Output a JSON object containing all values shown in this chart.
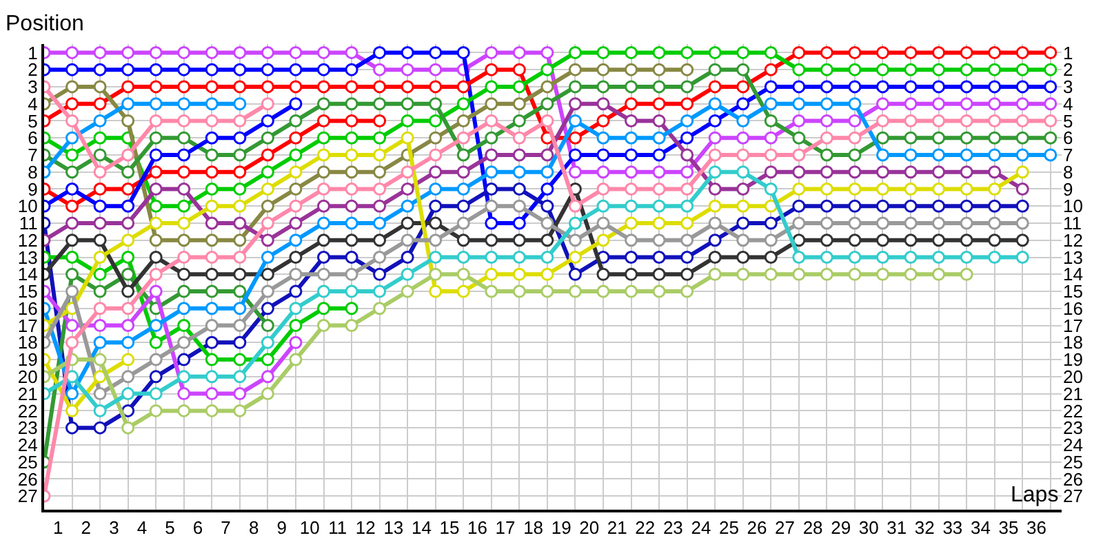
{
  "chart_data": {
    "type": "line",
    "xlabel": "Laps",
    "ylabel": "Position",
    "grid": true,
    "marker": "circle",
    "line_style": "solid",
    "x": [
      0,
      1,
      2,
      3,
      4,
      5,
      6,
      7,
      8,
      9,
      10,
      11,
      12,
      13,
      14,
      15,
      16,
      17,
      18,
      19,
      20,
      21,
      22,
      23,
      24,
      25,
      26,
      27,
      28,
      29,
      30,
      31,
      32,
      33,
      34,
      35,
      36
    ],
    "xlim": [
      0,
      36.4
    ],
    "xticks": [
      {
        "value": 0.5,
        "label": "1"
      },
      {
        "value": 1.5,
        "label": "2"
      },
      {
        "value": 2.5,
        "label": "3"
      },
      {
        "value": 3.5,
        "label": "4"
      },
      {
        "value": 4.5,
        "label": "5"
      },
      {
        "value": 5.5,
        "label": "6"
      },
      {
        "value": 6.5,
        "label": "7"
      },
      {
        "value": 7.5,
        "label": "8"
      },
      {
        "value": 8.5,
        "label": "9"
      },
      {
        "value": 9.5,
        "label": "10"
      },
      {
        "value": 10.5,
        "label": "11"
      },
      {
        "value": 11.5,
        "label": "12"
      },
      {
        "value": 12.5,
        "label": "13"
      },
      {
        "value": 13.5,
        "label": "14"
      },
      {
        "value": 14.5,
        "label": "15"
      },
      {
        "value": 15.5,
        "label": "16"
      },
      {
        "value": 16.5,
        "label": "17"
      },
      {
        "value": 17.5,
        "label": "18"
      },
      {
        "value": 18.5,
        "label": "19"
      },
      {
        "value": 19.5,
        "label": "20"
      },
      {
        "value": 20.5,
        "label": "21"
      },
      {
        "value": 21.5,
        "label": "22"
      },
      {
        "value": 22.5,
        "label": "23"
      },
      {
        "value": 23.5,
        "label": "24"
      },
      {
        "value": 24.5,
        "label": "25"
      },
      {
        "value": 25.5,
        "label": "26"
      },
      {
        "value": 26.5,
        "label": "27"
      },
      {
        "value": 27.5,
        "label": "28"
      },
      {
        "value": 28.5,
        "label": "29"
      },
      {
        "value": 29.5,
        "label": "30"
      },
      {
        "value": 30.5,
        "label": "31"
      },
      {
        "value": 31.5,
        "label": "32"
      },
      {
        "value": 32.5,
        "label": "33"
      },
      {
        "value": 33.5,
        "label": "34"
      },
      {
        "value": 34.5,
        "label": "35"
      },
      {
        "value": 35.5,
        "label": "36"
      }
    ],
    "ylim": [
      27.8,
      0.5
    ],
    "yticks": [
      1,
      2,
      3,
      4,
      5,
      6,
      7,
      8,
      9,
      10,
      11,
      12,
      13,
      14,
      15,
      16,
      17,
      18,
      19,
      20,
      21,
      22,
      23,
      24,
      25,
      26,
      27
    ],
    "y2lim": [
      27.8,
      0.5
    ],
    "y2ticks": [
      1,
      2,
      3,
      4,
      5,
      6,
      7,
      8,
      9,
      10,
      11,
      12,
      13,
      14,
      15,
      16,
      17,
      18,
      19,
      20,
      21,
      22,
      23,
      24,
      25,
      26,
      27
    ],
    "series": [
      {
        "color": "#cc44ff",
        "values": [
          1,
          1,
          1,
          1,
          1,
          1,
          1,
          1,
          1,
          1,
          1,
          1,
          2,
          2,
          2,
          2,
          1,
          1,
          1,
          8,
          8,
          8,
          8,
          8,
          6,
          6,
          6,
          5,
          5,
          5,
          4,
          4,
          4,
          4,
          4,
          4,
          4
        ]
      },
      {
        "color": "#0000ff",
        "values": [
          2,
          2,
          2,
          2,
          2,
          2,
          2,
          2,
          2,
          2,
          2,
          2,
          1,
          1,
          1,
          1,
          11,
          11,
          9,
          7,
          7,
          7,
          7,
          6,
          5,
          4,
          3,
          3,
          3,
          3,
          3,
          3,
          3,
          3,
          3,
          3,
          3
        ]
      },
      {
        "color": "#ff0000",
        "values": [
          5,
          4,
          4,
          3,
          3,
          3,
          3,
          3,
          3,
          3,
          3,
          3,
          3,
          3,
          3,
          3,
          2,
          2,
          6,
          6,
          5,
          4,
          4,
          4,
          3,
          3,
          2,
          1,
          1,
          1,
          1,
          1,
          1,
          1,
          1,
          1,
          1
        ]
      },
      {
        "color": "#00cc00",
        "values": [
          6,
          7,
          6,
          6,
          10,
          10,
          9,
          9,
          8,
          7,
          6,
          6,
          6,
          5,
          5,
          4,
          3,
          3,
          2,
          1,
          1,
          1,
          1,
          1,
          1,
          1,
          1,
          2,
          2,
          2,
          2,
          2,
          2,
          2,
          2,
          2,
          2
        ]
      },
      {
        "color": "#888844",
        "values": [
          4,
          3,
          3,
          5,
          12,
          12,
          12,
          12,
          10,
          9,
          8,
          8,
          8,
          7,
          6,
          5,
          4,
          4,
          3,
          2,
          2,
          2,
          2,
          2,
          null,
          null,
          null,
          null,
          null,
          null,
          null,
          null,
          null,
          null,
          null,
          null,
          null
        ]
      },
      {
        "color": "#339933",
        "values": [
          7,
          8,
          7,
          8,
          6,
          6,
          7,
          7,
          6,
          5,
          4,
          4,
          4,
          4,
          4,
          7,
          6,
          5,
          4,
          3,
          3,
          3,
          3,
          3,
          2,
          2,
          5,
          6,
          7,
          7,
          6,
          6,
          6,
          6,
          6,
          6,
          6
        ]
      },
      {
        "color": "#0099ff",
        "values": [
          8,
          6,
          5,
          4,
          4,
          4,
          4,
          4,
          null,
          null,
          null,
          null,
          null,
          null,
          null,
          null,
          null,
          null,
          null,
          null,
          null,
          null,
          null,
          null,
          null,
          null,
          null,
          null,
          null,
          null,
          null,
          null,
          null,
          null,
          null,
          null,
          null
        ]
      },
      {
        "color": "#ff88aa",
        "values": [
          3,
          5,
          8,
          7,
          5,
          5,
          5,
          5,
          4,
          null,
          null,
          null,
          null,
          null,
          null,
          null,
          null,
          null,
          null,
          null,
          null,
          null,
          null,
          null,
          null,
          null,
          null,
          null,
          null,
          null,
          null,
          null,
          null,
          null,
          null,
          null,
          null
        ]
      },
      {
        "color": "#ff0000",
        "values": [
          9,
          10,
          9,
          9,
          8,
          8,
          8,
          8,
          7,
          6,
          5,
          5,
          5,
          null,
          null,
          null,
          null,
          null,
          null,
          null,
          null,
          null,
          null,
          null,
          null,
          null,
          null,
          null,
          null,
          null,
          null,
          null,
          null,
          null,
          null,
          null,
          null
        ]
      },
      {
        "color": "#0000ff",
        "values": [
          10,
          9,
          10,
          10,
          7,
          7,
          6,
          6,
          5,
          4,
          null,
          null,
          null,
          null,
          null,
          null,
          null,
          null,
          null,
          null,
          null,
          null,
          null,
          null,
          null,
          null,
          null,
          null,
          null,
          null,
          null,
          null,
          null,
          null,
          null,
          null,
          null
        ]
      },
      {
        "color": "#1111bb",
        "values": [
          11,
          23,
          23,
          22,
          20,
          19,
          18,
          18,
          16,
          15,
          13,
          13,
          14,
          13,
          10,
          10,
          9,
          9,
          10,
          14,
          13,
          13,
          13,
          13,
          12,
          11,
          11,
          10,
          10,
          10,
          10,
          10,
          10,
          10,
          10,
          10,
          null
        ]
      },
      {
        "color": "#993399",
        "values": [
          12,
          11,
          11,
          11,
          9,
          9,
          11,
          11,
          12,
          11,
          10,
          10,
          10,
          9,
          8,
          8,
          7,
          7,
          7,
          4,
          4,
          5,
          5,
          7,
          9,
          9,
          8,
          8,
          8,
          8,
          8,
          8,
          8,
          8,
          8,
          9,
          null
        ]
      },
      {
        "color": "#00cc00",
        "values": [
          13,
          13,
          14,
          13,
          18,
          17,
          19,
          19,
          19,
          17,
          16,
          16,
          null,
          null,
          null,
          null,
          null,
          null,
          null,
          null,
          null,
          null,
          null,
          null,
          null,
          null,
          null,
          null,
          null,
          null,
          null,
          null,
          null,
          null,
          null,
          null,
          null
        ]
      },
      {
        "color": "#339933",
        "values": [
          25,
          14,
          15,
          14,
          16,
          15,
          15,
          15,
          17,
          null,
          null,
          null,
          null,
          null,
          null,
          null,
          null,
          null,
          null,
          null,
          null,
          null,
          null,
          null,
          null,
          null,
          null,
          null,
          null,
          null,
          null,
          null,
          null,
          null,
          null,
          null,
          null
        ]
      },
      {
        "color": "#333333",
        "values": [
          14,
          12,
          12,
          15,
          13,
          14,
          14,
          14,
          14,
          13,
          12,
          12,
          12,
          11,
          11,
          12,
          12,
          12,
          12,
          9,
          14,
          14,
          14,
          14,
          13,
          13,
          13,
          12,
          12,
          12,
          12,
          12,
          12,
          12,
          12,
          12,
          null
        ]
      },
      {
        "color": "#cc44ff",
        "values": [
          15,
          17,
          17,
          17,
          15,
          21,
          21,
          21,
          20,
          18,
          null,
          null,
          null,
          null,
          null,
          null,
          null,
          null,
          null,
          null,
          null,
          null,
          null,
          null,
          null,
          null,
          null,
          null,
          null,
          null,
          null,
          null,
          null,
          null,
          null,
          null,
          null
        ]
      },
      {
        "color": "#0099ff",
        "values": [
          16,
          21,
          18,
          18,
          17,
          16,
          16,
          16,
          13,
          12,
          11,
          11,
          11,
          10,
          9,
          9,
          8,
          8,
          8,
          5,
          6,
          6,
          6,
          5,
          4,
          5,
          4,
          4,
          4,
          4,
          7,
          7,
          7,
          7,
          7,
          7,
          7
        ]
      },
      {
        "color": "#dddd00",
        "values": [
          17,
          16,
          13,
          12,
          11,
          11,
          10,
          10,
          9,
          8,
          7,
          7,
          7,
          6,
          15,
          15,
          14,
          14,
          14,
          13,
          12,
          11,
          11,
          11,
          10,
          10,
          10,
          9,
          9,
          9,
          9,
          9,
          9,
          9,
          9,
          8,
          null
        ]
      },
      {
        "color": "#999999",
        "values": [
          18,
          15,
          21,
          20,
          19,
          18,
          17,
          17,
          15,
          14,
          14,
          14,
          13,
          12,
          12,
          11,
          10,
          10,
          11,
          12,
          11,
          12,
          12,
          12,
          11,
          12,
          12,
          11,
          11,
          11,
          11,
          11,
          11,
          11,
          11,
          11,
          null
        ]
      },
      {
        "color": "#dddd00",
        "values": [
          19,
          22,
          20,
          19,
          null,
          null,
          null,
          null,
          null,
          null,
          null,
          null,
          null,
          null,
          null,
          null,
          null,
          null,
          null,
          null,
          null,
          null,
          null,
          null,
          null,
          null,
          null,
          null,
          null,
          null,
          null,
          null,
          null,
          null,
          null,
          null,
          null
        ]
      },
      {
        "color": "#aacc66",
        "values": [
          20,
          19,
          19,
          23,
          22,
          22,
          22,
          22,
          21,
          19,
          17,
          17,
          16,
          15,
          14,
          14,
          15,
          15,
          15,
          15,
          15,
          15,
          15,
          15,
          14,
          14,
          14,
          14,
          14,
          14,
          14,
          14,
          14,
          14,
          null,
          null,
          null
        ]
      },
      {
        "color": "#33cccc",
        "values": [
          21,
          20,
          22,
          21,
          21,
          20,
          20,
          20,
          18,
          16,
          15,
          15,
          15,
          14,
          13,
          13,
          13,
          13,
          13,
          11,
          10,
          10,
          10,
          10,
          8,
          8,
          9,
          13,
          13,
          13,
          13,
          13,
          13,
          13,
          13,
          13,
          null
        ]
      },
      {
        "color": "#ff88aa",
        "values": [
          27,
          18,
          16,
          16,
          14,
          13,
          13,
          13,
          11,
          10,
          9,
          9,
          9,
          8,
          7,
          6,
          5,
          6,
          5,
          10,
          9,
          9,
          9,
          9,
          7,
          7,
          7,
          7,
          6,
          6,
          5,
          5,
          5,
          5,
          5,
          5,
          5
        ]
      }
    ]
  }
}
